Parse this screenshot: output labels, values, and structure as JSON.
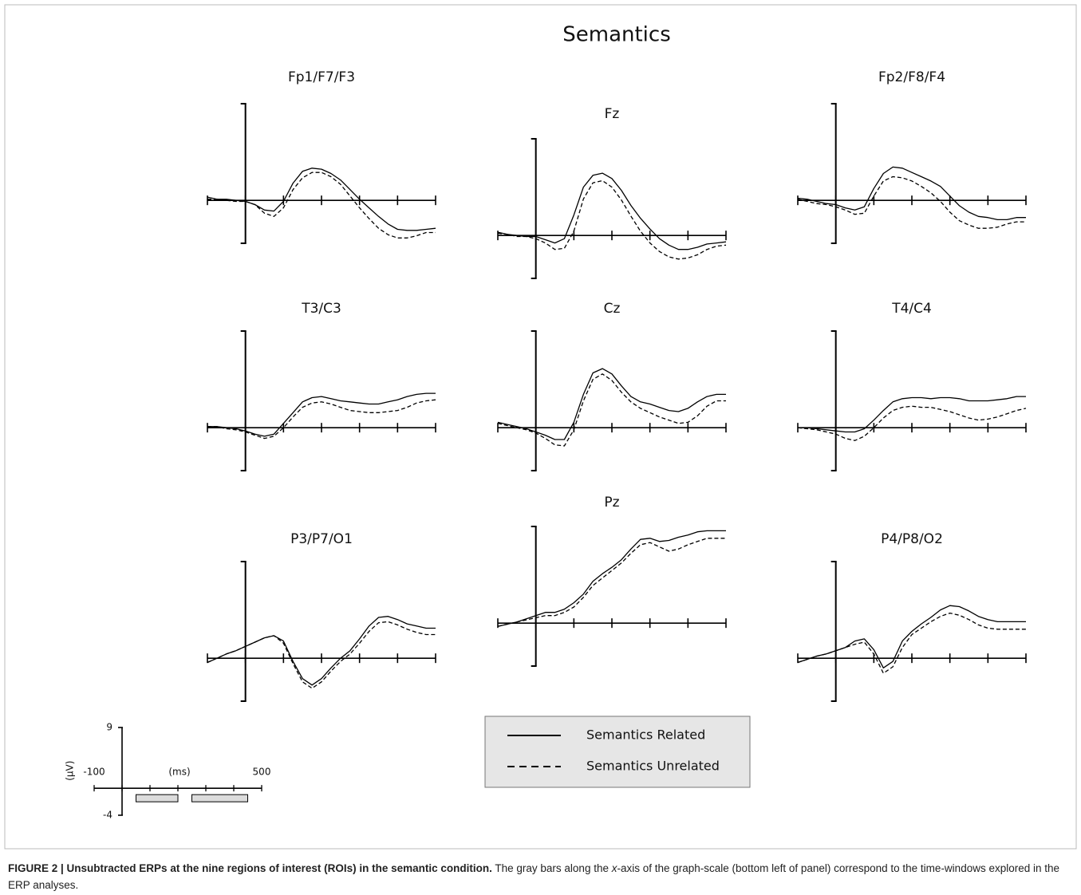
{
  "chart_data": {
    "type": "line",
    "title": "Semantics",
    "x": [
      -100,
      -75,
      -50,
      -25,
      0,
      25,
      50,
      75,
      100,
      125,
      150,
      175,
      200,
      225,
      250,
      275,
      300,
      325,
      350,
      375,
      400,
      425,
      450,
      475,
      500
    ],
    "xlim": [
      -100,
      500
    ],
    "ylim": [
      -4,
      9
    ],
    "xticks": [
      -100,
      0,
      100,
      200,
      300,
      400,
      500
    ],
    "series": [
      {
        "name": "Semantics Related",
        "color": "#000000",
        "dash": "solid"
      },
      {
        "name": "Semantics Unrelated",
        "color": "#000000",
        "dash": "dashed"
      }
    ],
    "panels": [
      {
        "title": "Fp1/F7/F3",
        "values": [
          [
            0.3,
            0.1,
            0.1,
            0,
            -0.1,
            -0.4,
            -0.9,
            -1.0,
            -0.1,
            1.6,
            2.7,
            3.0,
            2.9,
            2.5,
            1.9,
            1.0,
            0.1,
            -0.7,
            -1.5,
            -2.2,
            -2.7,
            -2.8,
            -2.8,
            -2.7,
            -2.6
          ],
          [
            0.1,
            0.1,
            0,
            -0.1,
            -0.1,
            -0.4,
            -1.2,
            -1.5,
            -0.7,
            1.0,
            2.1,
            2.6,
            2.6,
            2.2,
            1.5,
            0.4,
            -0.7,
            -1.7,
            -2.6,
            -3.2,
            -3.5,
            -3.5,
            -3.3,
            -3.0,
            -3.0
          ]
        ]
      },
      {
        "title": "Fz",
        "values": [
          [
            0.3,
            0.1,
            0,
            -0.1,
            -0.1,
            -0.4,
            -0.7,
            -0.3,
            1.9,
            4.5,
            5.6,
            5.8,
            5.3,
            4.2,
            2.8,
            1.6,
            0.6,
            -0.3,
            -0.9,
            -1.3,
            -1.3,
            -1.1,
            -0.8,
            -0.7,
            -0.6
          ],
          [
            0.2,
            0.1,
            -0.1,
            -0.1,
            -0.3,
            -0.7,
            -1.3,
            -1.2,
            0.4,
            3.4,
            4.9,
            5.1,
            4.5,
            3.3,
            1.8,
            0.4,
            -0.7,
            -1.5,
            -2.0,
            -2.2,
            -2.1,
            -1.8,
            -1.3,
            -1.0,
            -0.9
          ]
        ]
      },
      {
        "title": "Fp2/F8/F4",
        "values": [
          [
            0.2,
            0.1,
            -0.1,
            -0.3,
            -0.4,
            -0.7,
            -0.9,
            -0.6,
            1.1,
            2.5,
            3.1,
            3.0,
            2.6,
            2.2,
            1.8,
            1.3,
            0.4,
            -0.5,
            -1.1,
            -1.5,
            -1.6,
            -1.8,
            -1.8,
            -1.6,
            -1.6
          ],
          [
            0.1,
            -0.1,
            -0.3,
            -0.4,
            -0.6,
            -0.9,
            -1.3,
            -1.2,
            0.4,
            1.8,
            2.2,
            2.1,
            1.8,
            1.3,
            0.7,
            -0.1,
            -1.1,
            -1.9,
            -2.3,
            -2.6,
            -2.6,
            -2.5,
            -2.2,
            -2.0,
            -2.0
          ]
        ]
      },
      {
        "title": "T3/C3",
        "values": [
          [
            0.1,
            0.1,
            0,
            -0.1,
            -0.3,
            -0.6,
            -0.8,
            -0.6,
            0.4,
            1.4,
            2.4,
            2.8,
            2.9,
            2.7,
            2.5,
            2.4,
            2.3,
            2.2,
            2.2,
            2.4,
            2.6,
            2.9,
            3.1,
            3.2,
            3.2
          ],
          [
            0.1,
            0.1,
            -0.1,
            -0.2,
            -0.4,
            -0.7,
            -1.0,
            -0.8,
            0,
            1.0,
            1.9,
            2.3,
            2.4,
            2.2,
            1.9,
            1.6,
            1.5,
            1.4,
            1.4,
            1.5,
            1.6,
            1.9,
            2.3,
            2.5,
            2.6
          ]
        ]
      },
      {
        "title": "Cz",
        "values": [
          [
            0.5,
            0.3,
            0.1,
            -0.1,
            -0.4,
            -0.7,
            -1.1,
            -1.1,
            0.5,
            3.1,
            5.1,
            5.5,
            5.0,
            3.9,
            2.9,
            2.4,
            2.2,
            1.9,
            1.6,
            1.5,
            1.8,
            2.4,
            2.9,
            3.1,
            3.1
          ],
          [
            0.4,
            0.2,
            0,
            -0.2,
            -0.5,
            -1.0,
            -1.6,
            -1.7,
            -0.2,
            2.5,
            4.5,
            5.0,
            4.4,
            3.3,
            2.4,
            1.8,
            1.4,
            1.0,
            0.7,
            0.4,
            0.5,
            1.1,
            2.0,
            2.5,
            2.5
          ]
        ]
      },
      {
        "title": "T4/C4",
        "values": [
          [
            0,
            0,
            -0.1,
            -0.2,
            -0.3,
            -0.4,
            -0.4,
            -0.1,
            0.7,
            1.6,
            2.4,
            2.7,
            2.8,
            2.8,
            2.7,
            2.8,
            2.8,
            2.7,
            2.5,
            2.5,
            2.5,
            2.6,
            2.7,
            2.9,
            2.9
          ],
          [
            0,
            -0.1,
            -0.2,
            -0.4,
            -0.6,
            -1.0,
            -1.2,
            -0.8,
            0,
            0.9,
            1.6,
            1.9,
            2.0,
            1.9,
            1.9,
            1.7,
            1.5,
            1.2,
            0.9,
            0.7,
            0.8,
            1.0,
            1.3,
            1.6,
            1.8
          ]
        ]
      },
      {
        "title": "P3/P7/O1",
        "values": [
          [
            -0.4,
            0,
            0.4,
            0.7,
            1.1,
            1.5,
            1.9,
            2.1,
            1.6,
            -0.3,
            -1.9,
            -2.5,
            -1.9,
            -0.9,
            0,
            0.7,
            1.8,
            3.0,
            3.8,
            3.9,
            3.6,
            3.2,
            3.0,
            2.8,
            2.8
          ],
          [
            -0.4,
            0,
            0.4,
            0.7,
            1.1,
            1.5,
            1.9,
            2.1,
            1.4,
            -0.5,
            -2.2,
            -2.8,
            -2.2,
            -1.2,
            -0.3,
            0.4,
            1.4,
            2.5,
            3.3,
            3.4,
            3.1,
            2.7,
            2.4,
            2.2,
            2.2
          ]
        ]
      },
      {
        "title": "Pz",
        "values": [
          [
            -0.3,
            -0.1,
            0.1,
            0.4,
            0.7,
            1.0,
            1.0,
            1.3,
            1.9,
            2.7,
            3.9,
            4.6,
            5.2,
            5.9,
            6.9,
            7.8,
            7.9,
            7.6,
            7.7,
            8.0,
            8.2,
            8.5,
            8.6,
            8.6,
            8.6
          ],
          [
            -0.3,
            -0.1,
            0.1,
            0.3,
            0.5,
            0.7,
            0.7,
            1.0,
            1.5,
            2.4,
            3.5,
            4.2,
            4.9,
            5.6,
            6.5,
            7.3,
            7.5,
            7.1,
            6.7,
            6.9,
            7.3,
            7.6,
            7.9,
            7.9,
            7.9
          ]
        ]
      },
      {
        "title": "P4/P8/O2",
        "values": [
          [
            -0.4,
            -0.1,
            0.2,
            0.4,
            0.7,
            1.0,
            1.6,
            1.8,
            0.8,
            -0.9,
            -0.3,
            1.6,
            2.5,
            3.2,
            3.8,
            4.5,
            4.9,
            4.8,
            4.4,
            3.9,
            3.6,
            3.4,
            3.4,
            3.4,
            3.4
          ],
          [
            -0.4,
            -0.1,
            0.2,
            0.4,
            0.7,
            1.0,
            1.3,
            1.5,
            0.4,
            -1.4,
            -0.8,
            1.0,
            2.2,
            2.8,
            3.4,
            3.9,
            4.2,
            4.0,
            3.6,
            3.1,
            2.8,
            2.7,
            2.7,
            2.7,
            2.7
          ]
        ]
      }
    ],
    "scale": {
      "y_label": "(µV)",
      "x_label": "(ms)",
      "yticks": [
        -4,
        9
      ],
      "xticks": [
        -100,
        500
      ],
      "windows": [
        [
          50,
          200
        ],
        [
          250,
          450
        ]
      ],
      "window_color": "#dcdcdc"
    }
  },
  "caption": {
    "label": "FIGURE 2 | Unsubtracted ERPs at the nine regions of interest (ROIs) in the semantic condition.",
    "text_1": " The gray bars along the ",
    "italic": "x",
    "text_2": "-axis of the graph-scale (bottom left of panel) correspond to the time-windows explored in the ERP analyses."
  }
}
